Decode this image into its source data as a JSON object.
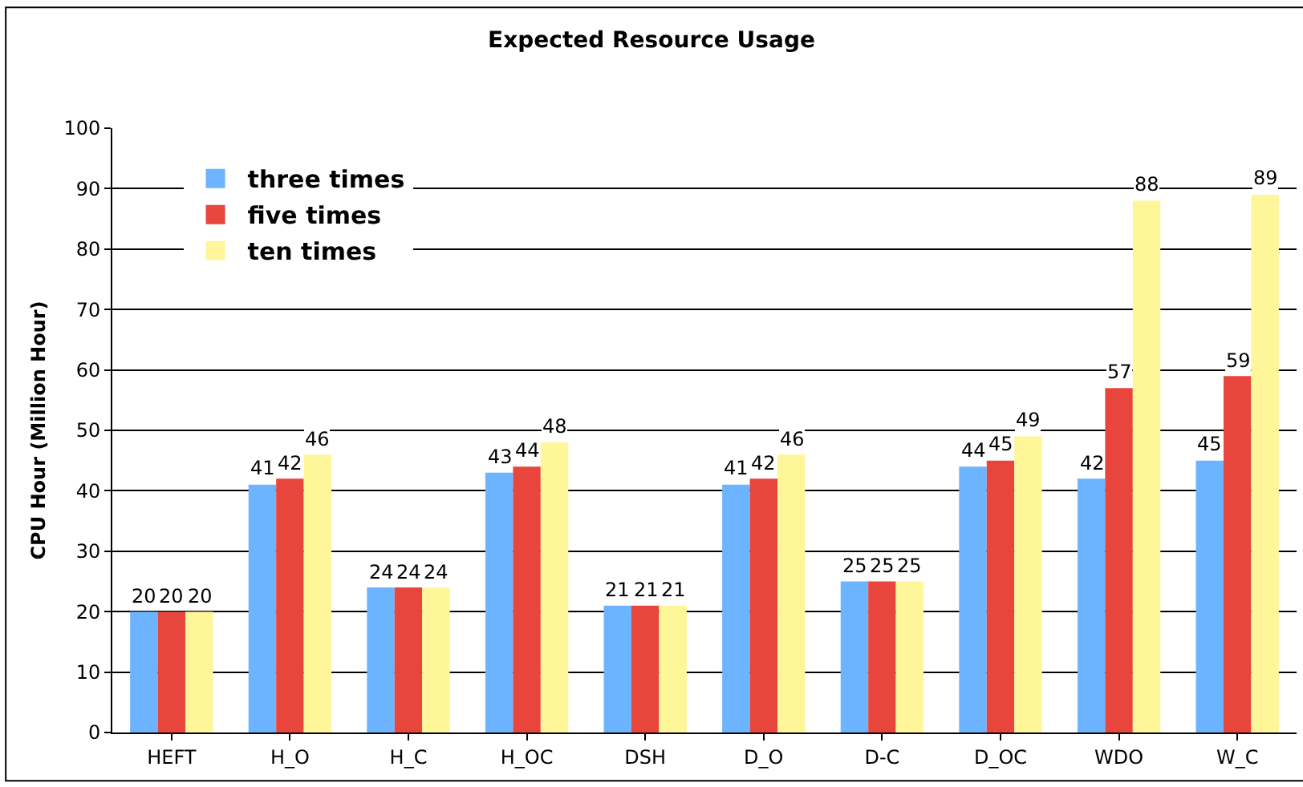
{
  "chart_data": {
    "type": "bar",
    "title": "Expected Resource Usage",
    "ylabel": "CPU Hour (Million Hour)",
    "categories": [
      "HEFT",
      "H_O",
      "H_C",
      "H_OC",
      "DSH",
      "D_O",
      "D-C",
      "D_OC",
      "WDO",
      "W_C"
    ],
    "series": [
      {
        "name": "three times",
        "color": "#6cb4ff",
        "values": [
          20,
          41,
          24,
          43,
          21,
          41,
          25,
          44,
          42,
          45
        ]
      },
      {
        "name": "five times",
        "color": "#e8453c",
        "values": [
          20,
          42,
          24,
          44,
          21,
          42,
          25,
          45,
          57,
          59
        ]
      },
      {
        "name": "ten times",
        "color": "#fff599",
        "values": [
          20,
          46,
          24,
          48,
          21,
          46,
          25,
          49,
          88,
          89
        ]
      }
    ],
    "ylim": [
      0,
      100
    ],
    "yticks": [
      0,
      10,
      20,
      30,
      40,
      50,
      60,
      70,
      80,
      90,
      100
    ],
    "grid": "y",
    "legend": "top left",
    "data_labels": true
  }
}
